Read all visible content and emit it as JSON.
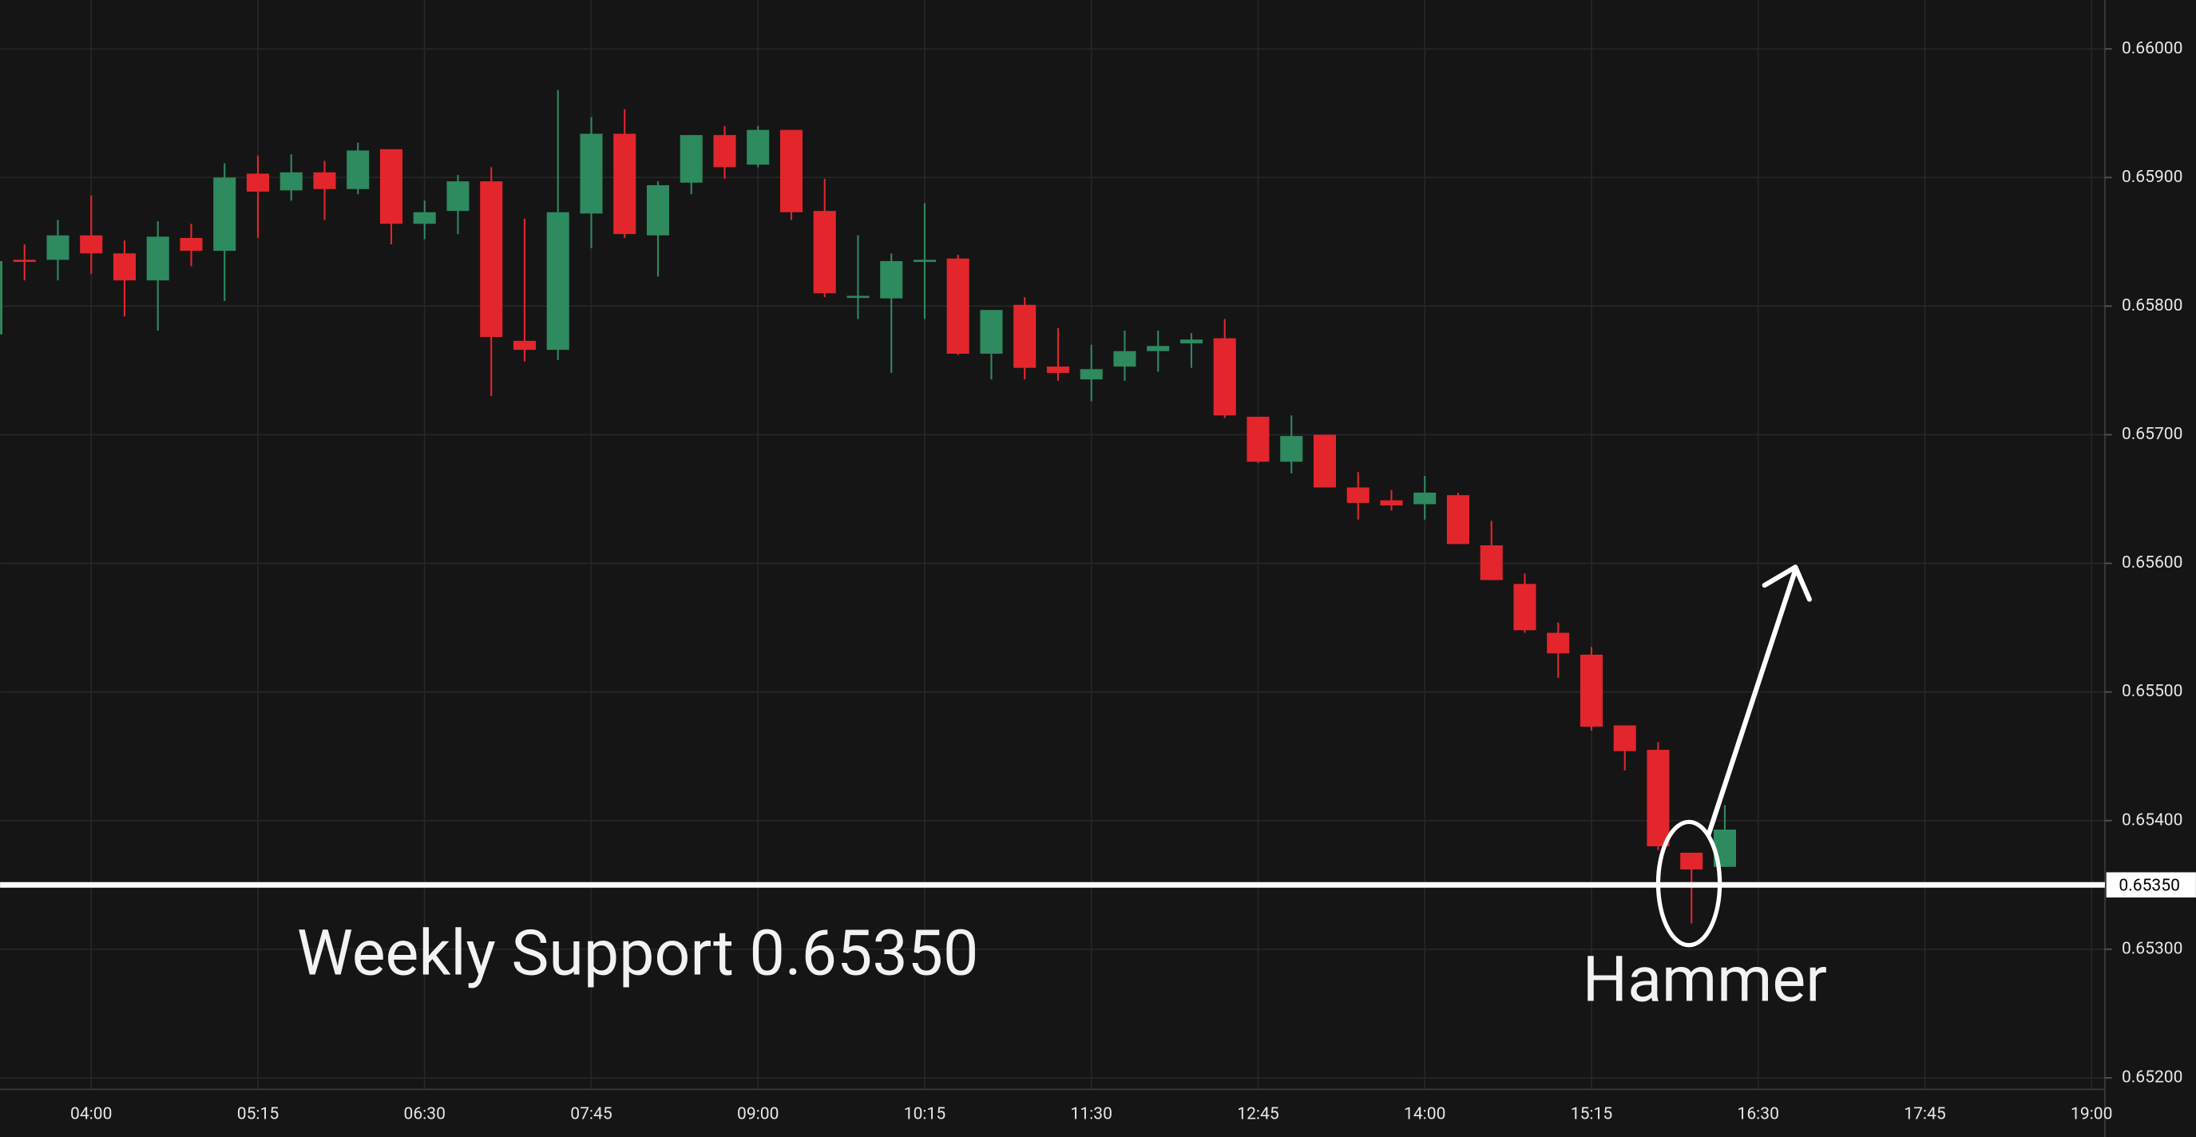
{
  "chart_data": {
    "type": "candlestick",
    "x": [
      "03:15",
      "03:30",
      "03:45",
      "04:00",
      "04:15",
      "04:30",
      "04:45",
      "05:00",
      "05:15",
      "05:30",
      "05:45",
      "06:00",
      "06:15",
      "06:30",
      "06:45",
      "07:00",
      "07:15",
      "07:30",
      "07:45",
      "08:00",
      "08:15",
      "08:30",
      "08:45",
      "09:00",
      "09:15",
      "09:30",
      "09:45",
      "10:00",
      "10:15",
      "10:30",
      "10:45",
      "11:00",
      "11:15",
      "11:30",
      "11:45",
      "12:00",
      "12:15",
      "12:30",
      "12:45",
      "13:00",
      "13:15",
      "13:30",
      "13:45",
      "14:00",
      "14:15",
      "14:30",
      "14:45",
      "15:00",
      "15:15",
      "15:30",
      "15:45",
      "16:00",
      "16:15"
    ],
    "open": [
      0.65778,
      0.65836,
      0.65836,
      0.65855,
      0.65841,
      0.6582,
      0.65853,
      0.65843,
      0.65903,
      0.6589,
      0.65904,
      0.65891,
      0.65922,
      0.65864,
      0.65874,
      0.65897,
      0.65773,
      0.65766,
      0.65872,
      0.65934,
      0.65855,
      0.65896,
      0.65933,
      0.6591,
      0.65937,
      0.65874,
      0.65807,
      0.65806,
      0.65835,
      0.65837,
      0.65763,
      0.65801,
      0.65753,
      0.65743,
      0.65753,
      0.65765,
      0.65771,
      0.65775,
      0.65714,
      0.65679,
      0.657,
      0.65659,
      0.65649,
      0.65646,
      0.65653,
      0.65614,
      0.65584,
      0.65546,
      0.65529,
      0.65474,
      0.65455,
      0.65375,
      0.65364
    ],
    "high": [
      0.65837,
      0.65848,
      0.65867,
      0.65886,
      0.65851,
      0.65866,
      0.65864,
      0.65911,
      0.65917,
      0.65918,
      0.65913,
      0.65927,
      0.65922,
      0.65882,
      0.65902,
      0.65908,
      0.65868,
      0.65968,
      0.65947,
      0.65953,
      0.65897,
      0.65933,
      0.6594,
      0.6594,
      0.65937,
      0.65899,
      0.65855,
      0.65841,
      0.6588,
      0.6584,
      0.65797,
      0.65807,
      0.65783,
      0.6577,
      0.65781,
      0.65781,
      0.65779,
      0.6579,
      0.65714,
      0.65715,
      0.657,
      0.65671,
      0.65657,
      0.65668,
      0.65655,
      0.65633,
      0.65592,
      0.65554,
      0.65535,
      0.65474,
      0.65461,
      0.65375,
      0.65412
    ],
    "low": [
      0.65777,
      0.6582,
      0.6582,
      0.65825,
      0.65792,
      0.65781,
      0.65831,
      0.65804,
      0.65853,
      0.65882,
      0.65867,
      0.65887,
      0.65848,
      0.65852,
      0.65856,
      0.6573,
      0.65757,
      0.65758,
      0.65845,
      0.65853,
      0.65823,
      0.65887,
      0.65899,
      0.65908,
      0.65867,
      0.65807,
      0.6579,
      0.65748,
      0.6579,
      0.65762,
      0.65743,
      0.65743,
      0.65742,
      0.65726,
      0.65742,
      0.65749,
      0.65752,
      0.65713,
      0.65678,
      0.6567,
      0.65659,
      0.65634,
      0.65641,
      0.65634,
      0.65615,
      0.65587,
      0.65546,
      0.65511,
      0.6547,
      0.65439,
      0.65377,
      0.6532,
      0.65364
    ],
    "close": [
      0.65835,
      0.65835,
      0.65855,
      0.65841,
      0.6582,
      0.65854,
      0.65843,
      0.659,
      0.65889,
      0.65904,
      0.65891,
      0.65921,
      0.65864,
      0.65873,
      0.65897,
      0.65776,
      0.65766,
      0.65873,
      0.65934,
      0.65856,
      0.65894,
      0.65933,
      0.65908,
      0.65937,
      0.65873,
      0.6581,
      0.65808,
      0.65835,
      0.65836,
      0.65763,
      0.65797,
      0.65752,
      0.65748,
      0.65751,
      0.65765,
      0.65769,
      0.65774,
      0.65715,
      0.65679,
      0.65699,
      0.65659,
      0.65647,
      0.65645,
      0.65655,
      0.65615,
      0.65587,
      0.65548,
      0.6553,
      0.65473,
      0.65454,
      0.6538,
      0.65362,
      0.65393
    ],
    "up_color": "#2e8a5f",
    "down_color": "#e3262c",
    "xlim": [
      "03:19",
      "19:06"
    ],
    "xticks": [
      "04:00",
      "05:15",
      "06:30",
      "07:45",
      "09:00",
      "10:15",
      "11:30",
      "12:45",
      "14:00",
      "15:15",
      "16:30",
      "17:45",
      "19:00"
    ],
    "ylim": [
      0.65191,
      0.66038
    ],
    "yticks": [
      {
        "value": 0.652,
        "label": "0.65200"
      },
      {
        "value": 0.653,
        "label": "0.65300"
      },
      {
        "value": 0.654,
        "label": "0.65400"
      },
      {
        "value": 0.655,
        "label": "0.65500"
      },
      {
        "value": 0.656,
        "label": "0.65600"
      },
      {
        "value": 0.657,
        "label": "0.65700"
      },
      {
        "value": 0.658,
        "label": "0.65800"
      },
      {
        "value": 0.659,
        "label": "0.65900"
      },
      {
        "value": 0.66,
        "label": "0.66000"
      }
    ],
    "grid": true,
    "support_level": {
      "value": 0.6535,
      "label": "0.65350"
    },
    "annotations": [
      "Weekly Support 0.65350",
      "Hammer"
    ]
  }
}
